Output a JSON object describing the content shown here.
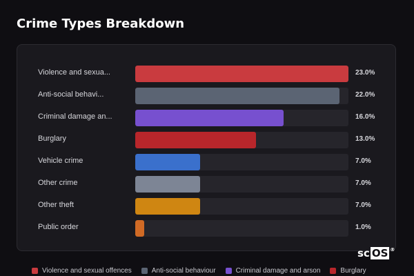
{
  "title": "Crime Types Breakdown",
  "chart_data": {
    "type": "bar",
    "orientation": "horizontal",
    "categories": [
      "Violence and sexua...",
      "Anti-social behavi...",
      "Criminal damage an...",
      "Burglary",
      "Vehicle crime",
      "Other crime",
      "Other theft",
      "Public order"
    ],
    "values": [
      23.0,
      22.0,
      16.0,
      13.0,
      7.0,
      7.0,
      7.0,
      1.0
    ],
    "value_labels": [
      "23.0%",
      "22.0%",
      "16.0%",
      "13.0%",
      "7.0%",
      "7.0%",
      "7.0%",
      "1.0%"
    ],
    "unit": "%",
    "xlim": [
      0,
      23
    ],
    "colors": [
      "#c93b3f",
      "#5b6473",
      "#7750cf",
      "#b8262b",
      "#3a70cc",
      "#7d8595",
      "#cf8612",
      "#d06a25"
    ],
    "legend": [
      {
        "label": "Violence and sexual offences",
        "color": "#c93b3f"
      },
      {
        "label": "Anti-social behaviour",
        "color": "#5b6473"
      },
      {
        "label": "Criminal damage and arson",
        "color": "#7750cf"
      },
      {
        "label": "Burglary",
        "color": "#b8262b"
      }
    ],
    "legend_position": "bottom"
  },
  "brand": {
    "prefix": "sc",
    "boxed": "OS",
    "mark": "®"
  }
}
